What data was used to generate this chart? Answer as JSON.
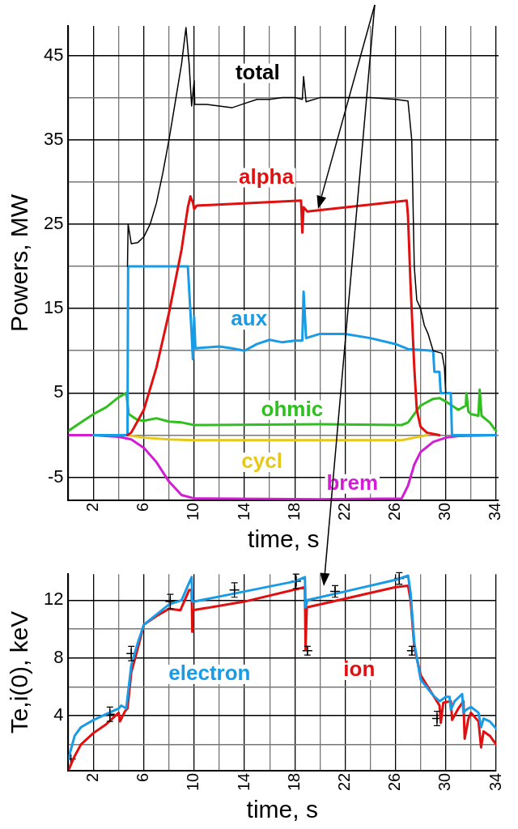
{
  "chart_data": [
    {
      "type": "line",
      "ylabel": "Powers, MW",
      "xlabel": "time, s",
      "xlim": [
        0,
        34.2
      ],
      "ylim": [
        -7.7,
        48.5
      ],
      "xticks": [
        {
          "value": 0,
          "label": null
        },
        2,
        {
          "value": 4,
          "label": null
        },
        6,
        {
          "value": 8,
          "label": null
        },
        10,
        {
          "value": 12,
          "label": null
        },
        14,
        {
          "value": 16,
          "label": null
        },
        18,
        {
          "value": 20,
          "label": null
        },
        22,
        {
          "value": 24,
          "label": null
        },
        26,
        {
          "value": 28,
          "label": null
        },
        30,
        {
          "value": 32,
          "label": null
        },
        34
      ],
      "yticks": [
        -5,
        {
          "value": 0,
          "label": null
        },
        5,
        {
          "value": 10,
          "label": null
        },
        15,
        {
          "value": 20,
          "label": null
        },
        25,
        {
          "value": 30,
          "label": null
        },
        35,
        {
          "value": 40,
          "label": null
        },
        45
      ],
      "grid": true,
      "marker": "none",
      "line_style": "solid",
      "legend": false,
      "series": [
        {
          "name": "total",
          "color": "#000000",
          "x": [
            4.7,
            4.75,
            5,
            5.5,
            6,
            6.5,
            7,
            7.5,
            8,
            8.5,
            9,
            9.35,
            9.6,
            9.8,
            10,
            10.05,
            11,
            12,
            13,
            14,
            15,
            16,
            17,
            18,
            18.6,
            18.7,
            18.9,
            20,
            22,
            24,
            26,
            27,
            27.3,
            27.5,
            27.7,
            28,
            28.3,
            28.6,
            29,
            29.7,
            29.9,
            30
          ],
          "values": [
            20,
            25,
            22.7,
            22.8,
            23.5,
            25,
            27.5,
            31,
            35,
            39.5,
            44,
            48.3,
            44,
            39,
            42,
            39.2,
            39.2,
            39,
            38.8,
            39.3,
            39.8,
            39.8,
            40,
            40,
            39.8,
            42.5,
            39.5,
            40,
            40,
            40,
            39.8,
            39.6,
            35,
            20,
            16,
            15,
            13,
            12,
            10,
            9.7,
            8,
            5
          ]
        },
        {
          "name": "alpha",
          "color": "#e01010",
          "x": [
            4.7,
            5,
            6,
            7,
            8,
            9,
            9.5,
            9.7,
            9.9,
            10,
            10.2,
            18.5,
            18.6,
            18.7,
            19,
            26.9,
            27,
            27.2,
            27.5,
            27.7,
            28,
            28.5,
            29.5
          ],
          "values": [
            0,
            0.3,
            3,
            8,
            14.5,
            22,
            27,
            28.3,
            27.6,
            26.8,
            27.2,
            27.8,
            24,
            27,
            26.5,
            27.8,
            26,
            18,
            8,
            3,
            1,
            0.3,
            0
          ]
        },
        {
          "name": "aux",
          "color": "#1a9be6",
          "x": [
            2,
            4.7,
            4.75,
            9.5,
            9.8,
            9.9,
            10,
            10.1,
            12,
            13,
            14,
            15,
            16,
            17,
            18,
            18.6,
            18.7,
            18.9,
            20,
            22,
            24,
            26,
            27,
            29,
            29.1,
            29.5,
            29.6,
            30.4,
            30.5,
            34
          ],
          "values": [
            0,
            0,
            20,
            20,
            12,
            9,
            14,
            10.3,
            10.5,
            10.3,
            10,
            10.8,
            11.3,
            11,
            11.2,
            11.2,
            17,
            11.5,
            12,
            12,
            11.5,
            10.8,
            10.2,
            10,
            7.5,
            7.5,
            5,
            5,
            0,
            0
          ]
        },
        {
          "name": "ohmic",
          "color": "#2fbf1f",
          "x": [
            0,
            1,
            2,
            3,
            4,
            4.6,
            4.8,
            5.5,
            6,
            7,
            8,
            9,
            10,
            20,
            26.5,
            27,
            28,
            29,
            29.5,
            30,
            31,
            31.6,
            31.65,
            31.8,
            32,
            32.6,
            32.7,
            32.85,
            33.5,
            34
          ],
          "values": [
            0.5,
            1.5,
            2.5,
            3.3,
            4.5,
            5,
            2.5,
            1.8,
            1.7,
            2,
            1.6,
            1.5,
            1.2,
            1.3,
            1.2,
            1.5,
            3.5,
            4.3,
            4.4,
            4,
            3,
            3.5,
            5,
            2.8,
            2.5,
            2.3,
            5.4,
            2.3,
            1.5,
            0.5
          ]
        },
        {
          "name": "cycl",
          "color": "#e6c81a",
          "x": [
            2,
            4.7,
            6,
            8,
            10,
            26.5,
            27.5,
            28.5
          ],
          "values": [
            0,
            0,
            -0.3,
            -0.5,
            -0.6,
            -0.6,
            -0.3,
            0
          ]
        },
        {
          "name": "brem",
          "color": "#d21ed2",
          "x": [
            0,
            2,
            4,
            5,
            6,
            7,
            8,
            9,
            10,
            20,
            26.5,
            27,
            27.5,
            28,
            29,
            30,
            31,
            34
          ],
          "values": [
            0,
            0,
            -0.2,
            -0.5,
            -1.5,
            -3.2,
            -5.5,
            -7.1,
            -7.5,
            -7.6,
            -7.5,
            -6,
            -3.5,
            -2,
            -0.8,
            -0.3,
            -0.1,
            0
          ]
        }
      ]
    },
    {
      "type": "line",
      "ylabel": "Te,i(0), keV",
      "xlabel": "time, s",
      "xlim": [
        0,
        34
      ],
      "ylim": [
        0.2,
        13.8
      ],
      "xticks": [
        {
          "value": 0,
          "label": null
        },
        2,
        {
          "value": 4,
          "label": null
        },
        6,
        {
          "value": 8,
          "label": null
        },
        10,
        {
          "value": 12,
          "label": null
        },
        14,
        {
          "value": 16,
          "label": null
        },
        18,
        {
          "value": 20,
          "label": null
        },
        22,
        {
          "value": 24,
          "label": null
        },
        26,
        {
          "value": 28,
          "label": null
        },
        30,
        {
          "value": 32,
          "label": null
        },
        34
      ],
      "yticks": [
        {
          "value": 2,
          "label": null
        },
        4,
        {
          "value": 6,
          "label": null
        },
        8,
        {
          "value": 10,
          "label": null
        },
        12
      ],
      "grid": true,
      "marker": "none",
      "line_style": "solid",
      "legend": false,
      "series": [
        {
          "name": "electron",
          "color": "#1a9be6",
          "x": [
            0,
            0.5,
            1,
            2,
            3,
            4,
            4.2,
            4.6,
            5,
            5.5,
            6,
            7,
            8,
            9,
            9.5,
            9.8,
            9.85,
            10,
            14,
            18,
            18.8,
            18.85,
            19,
            22,
            26,
            27,
            27.2,
            27.5,
            28,
            29,
            29.5,
            30,
            30.3,
            30.4,
            30.7,
            31.3,
            31.4,
            31.6,
            32,
            32.6,
            32.8,
            33,
            33.5,
            34
          ],
          "values": [
            1,
            2.6,
            3.2,
            3.7,
            4.1,
            4.5,
            4.7,
            4.5,
            7.5,
            9,
            10.3,
            11,
            11.7,
            12,
            13,
            13.6,
            11.9,
            11.9,
            12.6,
            13.3,
            13.6,
            11.5,
            12,
            12.6,
            13.4,
            13.7,
            12.5,
            9,
            6.5,
            5.4,
            5,
            5.3,
            5.3,
            4.4,
            5,
            5.5,
            4.2,
            4.4,
            4.6,
            4.2,
            3.2,
            3.8,
            3.6,
            3.1
          ]
        },
        {
          "name": "ion",
          "color": "#e01010",
          "x": [
            0,
            0.5,
            1,
            2,
            3,
            4,
            4.1,
            4.5,
            4.7,
            5,
            5.5,
            6,
            7,
            8,
            8.9,
            9.6,
            9.8,
            9.85,
            9.9,
            14,
            18.8,
            18.85,
            18.95,
            22,
            26,
            27,
            27.2,
            27.5,
            28,
            29,
            29.5,
            29.6,
            29.8,
            30.4,
            30.5,
            31,
            31.4,
            31.5,
            31.8,
            32,
            32.6,
            32.8,
            33,
            33.5,
            34
          ],
          "values": [
            0.2,
            1.2,
            2,
            2.8,
            3.4,
            4.2,
            3.6,
            4.3,
            4.5,
            7,
            8.6,
            10.3,
            10.9,
            11.4,
            11.3,
            12.7,
            12.7,
            9.8,
            11.3,
            11.9,
            12.9,
            8.6,
            11.5,
            12.1,
            12.9,
            13,
            12,
            8.7,
            6.8,
            5.4,
            4.7,
            3.5,
            4.9,
            5,
            3.7,
            4.5,
            5,
            2.4,
            3.8,
            4.2,
            3.6,
            1.8,
            2.9,
            2.6,
            2
          ]
        },
        {
          "type": "scatter",
          "marker": "cross",
          "color": "#000000",
          "x": [
            0.2,
            3.3,
            5,
            8.1,
            13.2,
            18.1,
            19,
            21.2,
            26.3,
            27.3,
            29.3
          ],
          "values": [
            1,
            4.1,
            8.3,
            11.9,
            12.7,
            13.3,
            8.5,
            12.6,
            13.5,
            8.5,
            3.8
          ],
          "errors": [
            null,
            0.5,
            0.5,
            0.5,
            0.5,
            0.5,
            0.3,
            0.4,
            0.4,
            0.3,
            0.5
          ]
        }
      ]
    }
  ]
}
